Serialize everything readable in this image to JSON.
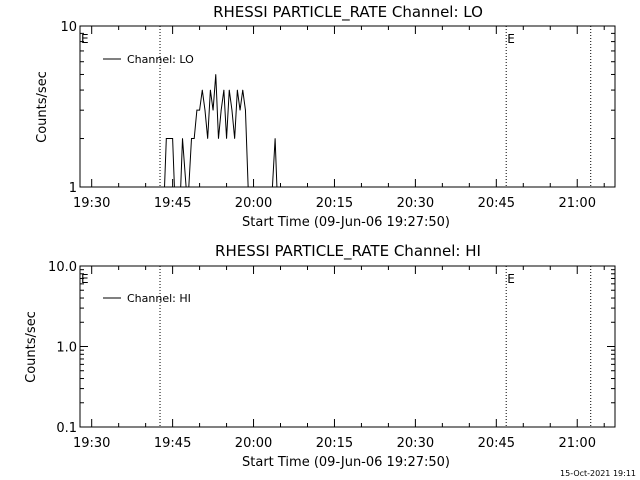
{
  "footer_timestamp": "15-Oct-2021 19:11",
  "chart_data": [
    {
      "type": "line",
      "title": "RHESSI PARTICLE_RATE Channel: LO",
      "xlabel": "Start Time (09-Jun-06 19:27:50)",
      "ylabel": "Counts/sec",
      "y_scale": "log",
      "ylim": [
        1,
        10
      ],
      "y_ticks": [
        {
          "value": 1,
          "label": "1"
        },
        {
          "value": 10,
          "label": "10"
        }
      ],
      "xlim": [
        "19:27:50",
        "21:07:00"
      ],
      "x_ticks": [
        "19:30",
        "19:45",
        "20:00",
        "20:15",
        "20:30",
        "20:45",
        "21:00"
      ],
      "legend": {
        "placement": "top-left",
        "entries": [
          "Channel: LO"
        ]
      },
      "grid": false,
      "markers": [
        {
          "time": "19:42:40",
          "style": "dotted",
          "label": "E"
        },
        {
          "time": "20:46:50",
          "style": "dotted",
          "label": "E"
        },
        {
          "time": "21:02:30",
          "style": "dotted",
          "label": ""
        }
      ],
      "series": [
        {
          "name": "Channel: LO",
          "x": [
            "19:42:40",
            "19:43:30",
            "19:43:50",
            "19:45:00",
            "19:45:20",
            "19:46:30",
            "19:46:50",
            "19:47:30",
            "19:48:00",
            "19:48:30",
            "19:49:00",
            "19:49:30",
            "19:50:00",
            "19:50:30",
            "19:51:00",
            "19:51:30",
            "19:52:00",
            "19:52:30",
            "19:53:00",
            "19:53:30",
            "19:54:00",
            "19:54:30",
            "19:55:00",
            "19:55:30",
            "19:56:00",
            "19:56:30",
            "19:57:00",
            "19:57:30",
            "19:58:00",
            "19:58:30",
            "19:59:00",
            "19:59:30",
            "20:00:00",
            "20:00:30",
            "20:01:00",
            "20:01:30",
            "20:02:00",
            "20:02:30",
            "20:03:00",
            "20:03:30",
            "20:04:00",
            "20:04:20",
            "20:04:40"
          ],
          "y": [
            1,
            1,
            2,
            2,
            1,
            1,
            2,
            1,
            1,
            2,
            2,
            3,
            3,
            4,
            3,
            2,
            4,
            3,
            5,
            2,
            3,
            4,
            2,
            4,
            3,
            2,
            4,
            3,
            4,
            3,
            1,
            1,
            1,
            1,
            1,
            1,
            1,
            1,
            1,
            1,
            2,
            1,
            1
          ]
        }
      ]
    },
    {
      "type": "line",
      "title": "RHESSI PARTICLE_RATE Channel: HI",
      "xlabel": "Start Time (09-Jun-06 19:27:50)",
      "ylabel": "Counts/sec",
      "y_scale": "log",
      "ylim": [
        0.1,
        10
      ],
      "y_ticks": [
        {
          "value": 0.1,
          "label": "0.1"
        },
        {
          "value": 1,
          "label": "1.0"
        },
        {
          "value": 10,
          "label": "10.0"
        }
      ],
      "xlim": [
        "19:27:50",
        "21:07:00"
      ],
      "x_ticks": [
        "19:30",
        "19:45",
        "20:00",
        "20:15",
        "20:30",
        "20:45",
        "21:00"
      ],
      "legend": {
        "placement": "top-left",
        "entries": [
          "Channel: HI"
        ]
      },
      "grid": false,
      "markers": [
        {
          "time": "19:42:40",
          "style": "dotted",
          "label": "E"
        },
        {
          "time": "20:46:50",
          "style": "dotted",
          "label": "E"
        },
        {
          "time": "21:02:30",
          "style": "dotted",
          "label": ""
        }
      ],
      "series": [
        {
          "name": "Channel: HI",
          "x": [],
          "y": []
        }
      ]
    }
  ]
}
